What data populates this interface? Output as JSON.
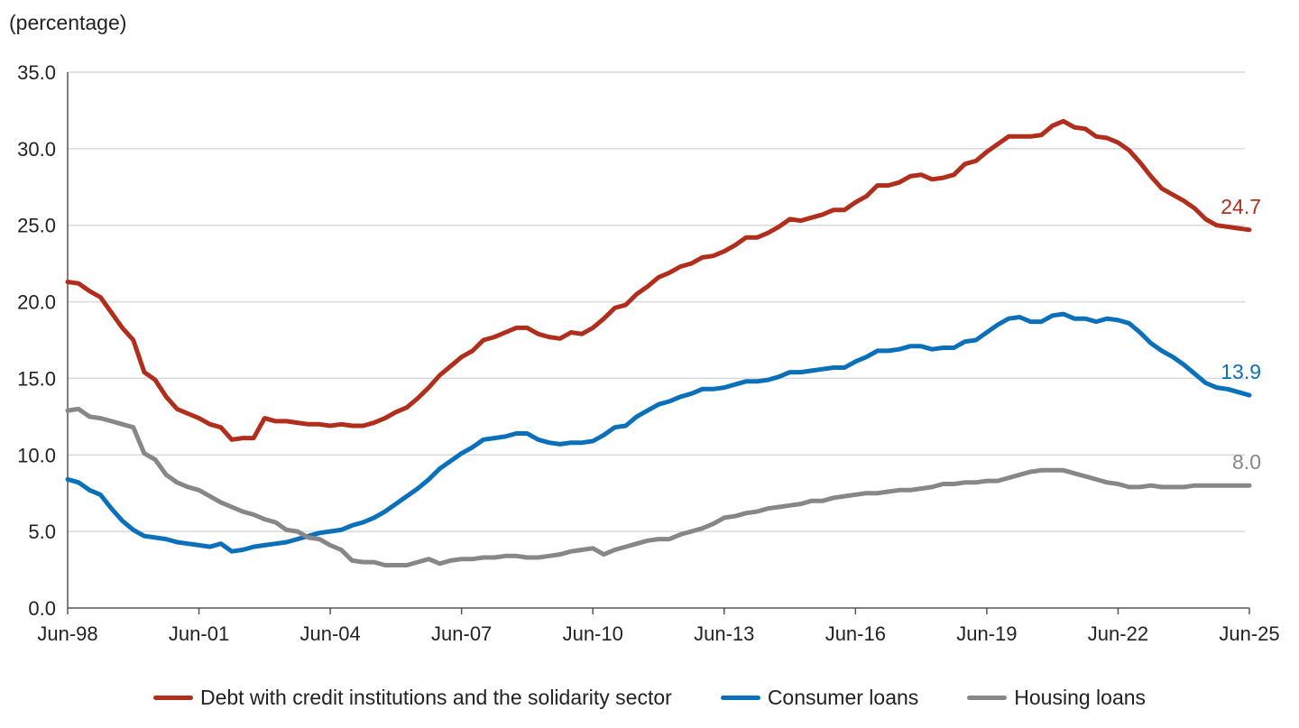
{
  "chart_data": {
    "type": "line",
    "title": "",
    "ylabel": "(percentage)",
    "xlabel": "",
    "ylim": [
      0,
      35
    ],
    "yticks": [
      "0.0",
      "5.0",
      "10.0",
      "15.0",
      "20.0",
      "25.0",
      "30.0",
      "35.0"
    ],
    "xticks": [
      "Jun-98",
      "Jun-01",
      "Jun-04",
      "Jun-07",
      "Jun-10",
      "Jun-13",
      "Jun-16",
      "Jun-19",
      "Jun-22",
      "Jun-25"
    ],
    "x_range": [
      "Jun-98",
      "Jun-25"
    ],
    "frequency": "quarterly",
    "grid": "horizontal",
    "legend_position": "bottom",
    "series": [
      {
        "name": "Debt with credit institutions and the solidarity sector",
        "color": "#B22E1C",
        "end_label": "24.7",
        "values": [
          21.3,
          21.2,
          20.7,
          20.3,
          19.3,
          18.3,
          17.5,
          15.4,
          14.9,
          13.8,
          13.0,
          12.7,
          12.4,
          12.0,
          11.8,
          11.0,
          11.1,
          11.1,
          12.4,
          12.2,
          12.2,
          12.1,
          12.0,
          12.0,
          11.9,
          12.0,
          11.9,
          11.9,
          12.1,
          12.4,
          12.8,
          13.1,
          13.7,
          14.4,
          15.2,
          15.8,
          16.4,
          16.8,
          17.5,
          17.7,
          18.0,
          18.3,
          18.3,
          17.9,
          17.7,
          17.6,
          18.0,
          17.9,
          18.3,
          18.9,
          19.6,
          19.8,
          20.5,
          21.0,
          21.6,
          21.9,
          22.3,
          22.5,
          22.9,
          23.0,
          23.3,
          23.7,
          24.2,
          24.2,
          24.5,
          24.9,
          25.4,
          25.3,
          25.5,
          25.7,
          26.0,
          26.0,
          26.5,
          26.9,
          27.6,
          27.6,
          27.8,
          28.2,
          28.3,
          28.0,
          28.1,
          28.3,
          29.0,
          29.2,
          29.8,
          30.3,
          30.8,
          30.8,
          30.8,
          30.9,
          31.5,
          31.8,
          31.4,
          31.3,
          30.8,
          30.7,
          30.4,
          29.9,
          29.1,
          28.2,
          27.4,
          27.0,
          26.6,
          26.1,
          25.4,
          25.0,
          24.9,
          24.8,
          24.7
        ]
      },
      {
        "name": "Consumer loans",
        "color": "#0A70BA",
        "end_label": "13.9",
        "values": [
          8.4,
          8.2,
          7.7,
          7.4,
          6.5,
          5.7,
          5.1,
          4.7,
          4.6,
          4.5,
          4.3,
          4.2,
          4.1,
          4.0,
          4.2,
          3.7,
          3.8,
          4.0,
          4.1,
          4.2,
          4.3,
          4.5,
          4.7,
          4.9,
          5.0,
          5.1,
          5.4,
          5.6,
          5.9,
          6.3,
          6.8,
          7.3,
          7.8,
          8.4,
          9.1,
          9.6,
          10.1,
          10.5,
          11.0,
          11.1,
          11.2,
          11.4,
          11.4,
          11.0,
          10.8,
          10.7,
          10.8,
          10.8,
          10.9,
          11.3,
          11.8,
          11.9,
          12.5,
          12.9,
          13.3,
          13.5,
          13.8,
          14.0,
          14.3,
          14.3,
          14.4,
          14.6,
          14.8,
          14.8,
          14.9,
          15.1,
          15.4,
          15.4,
          15.5,
          15.6,
          15.7,
          15.7,
          16.1,
          16.4,
          16.8,
          16.8,
          16.9,
          17.1,
          17.1,
          16.9,
          17.0,
          17.0,
          17.4,
          17.5,
          18.0,
          18.5,
          18.9,
          19.0,
          18.7,
          18.7,
          19.1,
          19.2,
          18.9,
          18.9,
          18.7,
          18.9,
          18.8,
          18.6,
          18.0,
          17.3,
          16.8,
          16.4,
          15.9,
          15.3,
          14.7,
          14.4,
          14.3,
          14.1,
          13.9
        ]
      },
      {
        "name": "Housing loans",
        "color": "#878787",
        "end_label": "8.0",
        "values": [
          12.9,
          13.0,
          12.5,
          12.4,
          12.2,
          12.0,
          11.8,
          10.1,
          9.7,
          8.7,
          8.2,
          7.9,
          7.7,
          7.3,
          6.9,
          6.6,
          6.3,
          6.1,
          5.8,
          5.6,
          5.1,
          5.0,
          4.6,
          4.5,
          4.1,
          3.8,
          3.1,
          3.0,
          3.0,
          2.8,
          2.8,
          2.8,
          3.0,
          3.2,
          2.9,
          3.1,
          3.2,
          3.2,
          3.3,
          3.3,
          3.4,
          3.4,
          3.3,
          3.3,
          3.4,
          3.5,
          3.7,
          3.8,
          3.9,
          3.5,
          3.8,
          4.0,
          4.2,
          4.4,
          4.5,
          4.5,
          4.8,
          5.0,
          5.2,
          5.5,
          5.9,
          6.0,
          6.2,
          6.3,
          6.5,
          6.6,
          6.7,
          6.8,
          7.0,
          7.0,
          7.2,
          7.3,
          7.4,
          7.5,
          7.5,
          7.6,
          7.7,
          7.7,
          7.8,
          7.9,
          8.1,
          8.1,
          8.2,
          8.2,
          8.3,
          8.3,
          8.5,
          8.7,
          8.9,
          9.0,
          9.0,
          9.0,
          8.8,
          8.6,
          8.4,
          8.2,
          8.1,
          7.9,
          7.9,
          8.0,
          7.9,
          7.9,
          7.9,
          8.0,
          8.0,
          8.0,
          8.0,
          8.0,
          8.0
        ]
      }
    ]
  }
}
